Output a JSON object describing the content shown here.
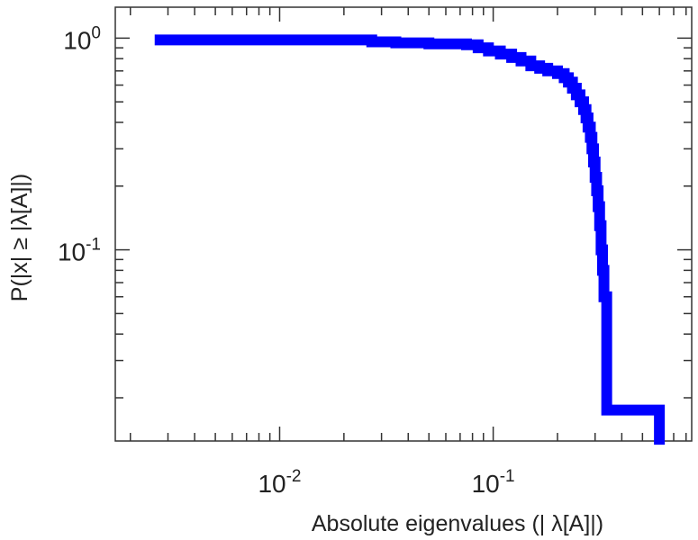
{
  "chart_data": {
    "type": "line",
    "title": "",
    "xlabel": "Absolute eigenvalues (|     λ[A]|)",
    "ylabel": "P(|x|  ≥ |λ[A]|)",
    "x_scale": "log",
    "y_scale": "log",
    "xlim": [
      0.0017,
      0.85
    ],
    "ylim": [
      0.0125,
      1.4
    ],
    "grid": false,
    "x_ticks": [
      {
        "value": 0.01,
        "base": "10",
        "exp": "-2"
      },
      {
        "value": 0.1,
        "base": "10",
        "exp": "-1"
      }
    ],
    "y_ticks": [
      {
        "value": 1,
        "base": "10",
        "exp": "0"
      },
      {
        "value": 0.1,
        "base": "10",
        "exp": "-1"
      }
    ],
    "color": "#0000ff",
    "series": [
      {
        "step": true,
        "x": [
          0.0026,
          0.027,
          0.035,
          0.05,
          0.075,
          0.085,
          0.095,
          0.108,
          0.122,
          0.135,
          0.15,
          0.165,
          0.18,
          0.2,
          0.215,
          0.225,
          0.235,
          0.245,
          0.255,
          0.265,
          0.272,
          0.278,
          0.285,
          0.29,
          0.295,
          0.3,
          0.305,
          0.31,
          0.315,
          0.32,
          0.325,
          0.33,
          0.34,
          0.6
        ],
        "y": [
          0.98,
          0.96,
          0.95,
          0.94,
          0.93,
          0.9,
          0.87,
          0.84,
          0.81,
          0.78,
          0.74,
          0.72,
          0.7,
          0.68,
          0.65,
          0.62,
          0.58,
          0.54,
          0.5,
          0.46,
          0.42,
          0.38,
          0.34,
          0.3,
          0.26,
          0.22,
          0.19,
          0.16,
          0.13,
          0.1,
          0.08,
          0.06,
          0.0175,
          0.012
        ]
      }
    ]
  }
}
